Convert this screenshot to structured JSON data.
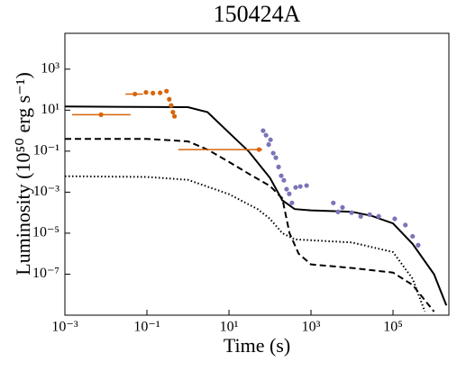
{
  "chart_data": {
    "type": "scatter",
    "title": "150424A",
    "xlabel": "Time (s)",
    "ylabel": "Luminosity (10⁵⁰ erg s⁻¹)",
    "xscale": "log",
    "yscale": "log",
    "xlim": [
      0.001,
      2300000
    ],
    "ylim": [
      1e-09,
      56000
    ],
    "xticks": [
      {
        "value": 0.001,
        "label": "10⁻³"
      },
      {
        "value": 0.1,
        "label": "10⁻¹"
      },
      {
        "value": 10,
        "label": "10¹"
      },
      {
        "value": 1000,
        "label": "10³"
      },
      {
        "value": 100000,
        "label": "10⁵"
      }
    ],
    "yticks": [
      {
        "value": 1e-07,
        "label": "10⁻⁷"
      },
      {
        "value": 1e-05,
        "label": "10⁻⁵"
      },
      {
        "value": 0.001,
        "label": "10⁻³"
      },
      {
        "value": 0.1,
        "label": "10⁻¹"
      },
      {
        "value": 10,
        "label": "10¹"
      },
      {
        "value": 1000,
        "label": "10³"
      }
    ],
    "lines": [
      {
        "color": "#000000",
        "linestyle": "solid",
        "x": [
          0.001,
          1,
          3,
          10,
          30,
          100,
          200,
          400,
          1000,
          10000,
          30000,
          100000,
          300000,
          1000000,
          2000000
        ],
        "values": [
          15,
          14,
          8,
          0.8,
          0.1,
          0.005,
          0.0004,
          0.00015,
          0.00013,
          0.00011,
          7e-05,
          3e-05,
          3e-06,
          1e-07,
          3e-09
        ]
      },
      {
        "color": "#000000",
        "linestyle": "dashed",
        "x": [
          0.001,
          0.1,
          1,
          3,
          10,
          30,
          100,
          200,
          300,
          500,
          1000,
          10000,
          100000,
          300000,
          1000000
        ],
        "values": [
          0.4,
          0.4,
          0.3,
          0.12,
          0.03,
          0.008,
          0.002,
          0.0005,
          1e-05,
          1e-06,
          3e-07,
          2e-07,
          1.2e-07,
          3e-08,
          1.5e-09
        ]
      },
      {
        "color": "#000000",
        "linestyle": "dotted",
        "x": [
          0.001,
          0.1,
          1,
          10,
          50,
          100,
          200,
          400,
          1000,
          10000,
          100000,
          300000,
          600000
        ],
        "values": [
          0.006,
          0.0055,
          0.004,
          0.0008,
          0.00015,
          5e-05,
          1e-05,
          5e-06,
          4.5e-06,
          3.5e-06,
          1.2e-06,
          6e-08,
          1.5e-09
        ]
      }
    ],
    "series": [
      {
        "color": "#d9640a",
        "x": [
          0.0076,
          0.051,
          0.095,
          0.14,
          0.21,
          0.3,
          0.35,
          0.39,
          0.43,
          0.47,
          54
        ],
        "values": [
          6,
          61,
          74,
          68,
          70,
          85,
          34,
          17,
          8,
          5,
          0.12
        ],
        "xlow": [
          0.0015,
          0.03,
          null,
          null,
          null,
          null,
          null,
          null,
          null,
          null,
          0.58
        ],
        "xhigh": [
          0.04,
          0.08,
          null,
          null,
          null,
          null,
          null,
          null,
          null,
          null,
          65
        ]
      },
      {
        "color": "#7a74b8",
        "x": [
          68,
          80,
          93,
          103,
          120,
          139,
          162,
          188,
          218,
          254,
          295,
          343,
          422,
          550,
          780,
          3500,
          4550,
          5860,
          9760,
          16300,
          27000,
          44700,
          110000,
          200000,
          300000,
          410000
        ],
        "values": [
          1,
          0.6,
          0.21,
          0.36,
          0.08,
          0.048,
          0.017,
          0.0063,
          0.0038,
          0.0014,
          0.00083,
          0.0003,
          0.0017,
          0.0019,
          0.0021,
          0.0003,
          0.00011,
          0.00018,
          0.0001,
          6.6e-05,
          8e-05,
          6.6e-05,
          5e-05,
          2.5e-05,
          7e-06,
          2.6e-06
        ]
      }
    ]
  }
}
